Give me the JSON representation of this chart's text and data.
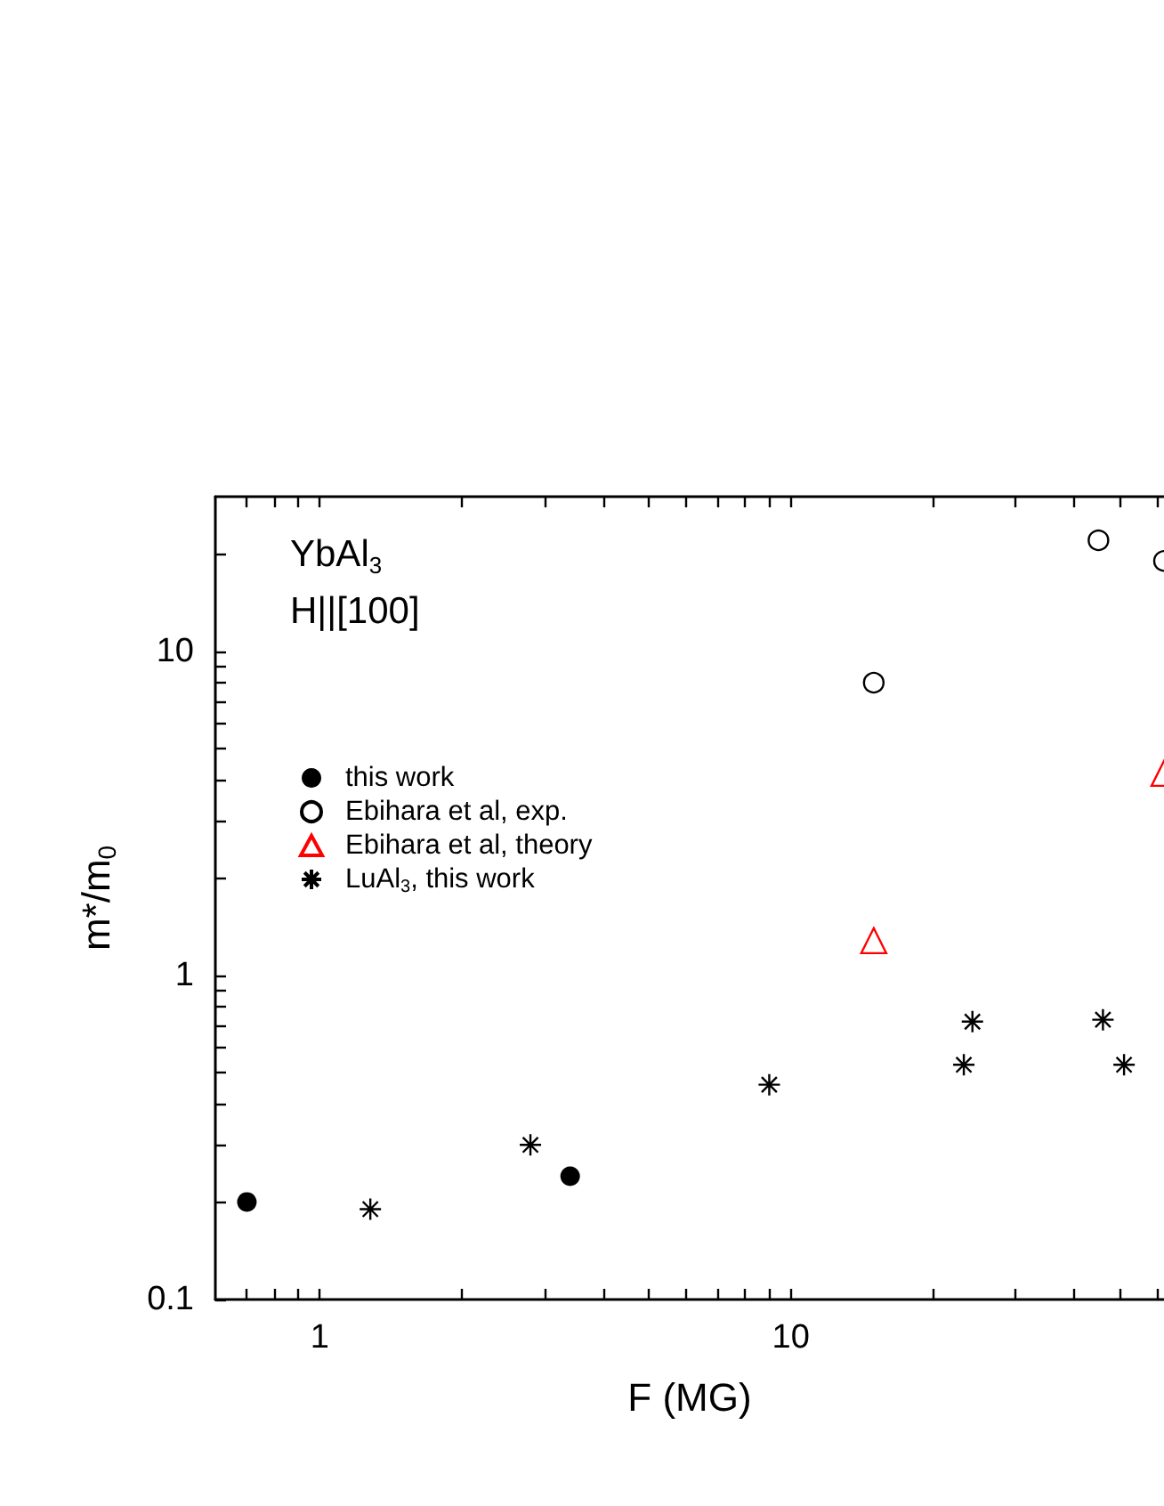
{
  "chart_data": {
    "type": "scatter",
    "xlabel": "F (MG)",
    "ylabel": "m*/m$_{0}$",
    "annotations": [
      "YbAl$_{3}$",
      "H||[100]"
    ],
    "log": "xy",
    "xlim": [
      0.6,
      62
    ],
    "ylim": [
      0.1,
      30
    ],
    "xticks": [
      {
        "value": 0.7,
        "label": null
      },
      {
        "value": 0.8,
        "label": null
      },
      {
        "value": 0.9,
        "label": null
      },
      1,
      {
        "value": 2,
        "label": null
      },
      {
        "value": 3,
        "label": null
      },
      {
        "value": 4,
        "label": null
      },
      {
        "value": 5,
        "label": null
      },
      {
        "value": 6,
        "label": null
      },
      {
        "value": 7,
        "label": null
      },
      {
        "value": 8,
        "label": null
      },
      {
        "value": 9,
        "label": null
      },
      10,
      {
        "value": 20,
        "label": null
      },
      {
        "value": 30,
        "label": null
      },
      {
        "value": 40,
        "label": null
      },
      {
        "value": 50,
        "label": null
      },
      {
        "value": 60,
        "label": null
      }
    ],
    "yticks": [
      0.1,
      {
        "value": 0.2,
        "label": null
      },
      {
        "value": 0.3,
        "label": null
      },
      {
        "value": 0.4,
        "label": null
      },
      {
        "value": 0.5,
        "label": null
      },
      {
        "value": 0.6,
        "label": null
      },
      {
        "value": 0.7,
        "label": null
      },
      {
        "value": 0.8,
        "label": null
      },
      {
        "value": 0.9,
        "label": null
      },
      1,
      {
        "value": 2,
        "label": null
      },
      {
        "value": 3,
        "label": null
      },
      {
        "value": 4,
        "label": null
      },
      {
        "value": 5,
        "label": null
      },
      {
        "value": 6,
        "label": null
      },
      {
        "value": 7,
        "label": null
      },
      {
        "value": 8,
        "label": null
      },
      {
        "value": 9,
        "label": null
      },
      10,
      {
        "value": 20,
        "label": null
      }
    ],
    "legend": "top left",
    "series": [
      {
        "name": "this work",
        "color": "#000000",
        "marker": "circle",
        "x": [
          0.7,
          3.4
        ],
        "values": [
          0.2,
          0.24
        ]
      },
      {
        "name": "Ebihara et al, exp.",
        "color": "#000000",
        "marker": "circle",
        "x": [
          15,
          45,
          62
        ],
        "values": [
          8.0,
          22,
          19
        ]
      },
      {
        "name": "Ebihara et al, theory",
        "color": "#ff0000",
        "marker": "triangle",
        "x": [
          15,
          62
        ],
        "values": [
          1.28,
          4.2
        ]
      },
      {
        "name": "LuAl$_{3}$, this work",
        "color": "#000000",
        "marker": "cross",
        "x": [
          1.28,
          2.8,
          9.0,
          23.3,
          24.3,
          46,
          51
        ],
        "values": [
          0.19,
          0.3,
          0.46,
          0.53,
          0.72,
          0.73,
          0.53
        ]
      }
    ]
  }
}
